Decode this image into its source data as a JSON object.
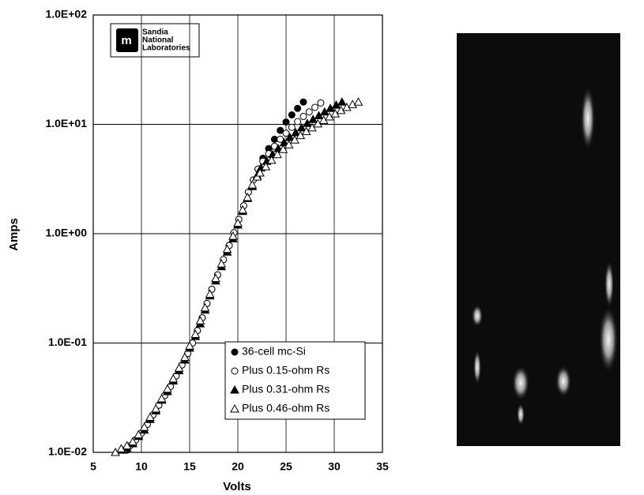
{
  "chart_data": {
    "type": "scatter",
    "x_label": "Volts",
    "y_label": "Amps",
    "logo_lines": [
      "Sandia",
      "National",
      "Laboratories"
    ],
    "xlim": [
      5,
      35
    ],
    "xticks": [
      5,
      10,
      15,
      20,
      25,
      30,
      35
    ],
    "ylim": [
      0.01,
      100
    ],
    "log_y": true,
    "grid": true,
    "legend": "lower right",
    "yticks": [
      {
        "value": 0.01,
        "label": "1.0E-02"
      },
      {
        "value": 0.1,
        "label": "1.0E-01"
      },
      {
        "value": 1,
        "label": "1.0E+00"
      },
      {
        "value": 10,
        "label": "1.0E+01"
      },
      {
        "value": 100,
        "label": "1.0E+02"
      }
    ],
    "series": [
      {
        "name": "36-cell mc-Si",
        "color": "#000000",
        "marker": "circle",
        "filled": true,
        "x": [
          8.5,
          9.4,
          10.0,
          10.6,
          11.2,
          11.8,
          12.4,
          13.0,
          13.6,
          14.2,
          14.8,
          15.3,
          15.8,
          16.3,
          16.8,
          17.3,
          17.9,
          18.5,
          19.1,
          19.6,
          20.1,
          20.6,
          21.1,
          21.6,
          22.1,
          22.6,
          23.2,
          23.8,
          24.4,
          25.0,
          25.6,
          26.2,
          26.8
        ],
        "values": [
          0.0105,
          0.013,
          0.015,
          0.018,
          0.022,
          0.027,
          0.033,
          0.04,
          0.05,
          0.063,
          0.08,
          0.1,
          0.13,
          0.17,
          0.23,
          0.31,
          0.42,
          0.58,
          0.78,
          1.02,
          1.35,
          1.8,
          2.4,
          3.1,
          3.9,
          4.9,
          6.0,
          7.3,
          8.8,
          10.5,
          12.2,
          14.0,
          16.0
        ]
      },
      {
        "name": "Plus 0.15-ohm Rs",
        "color": "#000000",
        "marker": "circle",
        "filled": false,
        "x": [
          8.2,
          8.8,
          9.4,
          10.0,
          10.6,
          11.2,
          11.8,
          12.4,
          13.0,
          13.6,
          14.2,
          14.8,
          15.3,
          15.8,
          16.3,
          16.8,
          17.3,
          17.9,
          18.5,
          19.1,
          19.6,
          20.1,
          20.6,
          21.1,
          21.6,
          22.1,
          22.6,
          23.2,
          23.8,
          24.4,
          25.0,
          25.6,
          26.2,
          26.8,
          27.4,
          28.0,
          28.6
        ],
        "values": [
          0.0105,
          0.0115,
          0.013,
          0.015,
          0.018,
          0.022,
          0.027,
          0.033,
          0.04,
          0.05,
          0.063,
          0.08,
          0.1,
          0.13,
          0.17,
          0.23,
          0.31,
          0.42,
          0.58,
          0.78,
          1.02,
          1.35,
          1.8,
          2.4,
          3.1,
          3.9,
          4.6,
          5.4,
          6.3,
          7.3,
          8.3,
          9.4,
          10.6,
          11.8,
          13.0,
          14.3,
          15.7
        ]
      },
      {
        "name": "Plus 0.31-ohm Rs",
        "color": "#000000",
        "marker": "triangle",
        "filled": true,
        "x": [
          7.9,
          8.5,
          9.1,
          9.7,
          10.3,
          10.9,
          11.5,
          12.1,
          12.7,
          13.3,
          13.9,
          14.5,
          15.0,
          15.6,
          16.1,
          16.6,
          17.1,
          17.7,
          18.3,
          18.9,
          19.5,
          20.0,
          20.5,
          21.0,
          21.5,
          22.0,
          22.4,
          23.0,
          23.6,
          24.2,
          24.8,
          25.4,
          26.0,
          26.6,
          27.2,
          27.8,
          28.4,
          29.0,
          29.6,
          30.2,
          30.8
        ],
        "values": [
          0.0105,
          0.011,
          0.012,
          0.014,
          0.016,
          0.02,
          0.024,
          0.03,
          0.036,
          0.045,
          0.056,
          0.07,
          0.09,
          0.115,
          0.15,
          0.2,
          0.27,
          0.37,
          0.5,
          0.68,
          0.9,
          1.2,
          1.6,
          2.1,
          2.7,
          3.4,
          4.0,
          4.6,
          5.3,
          6.0,
          6.8,
          7.6,
          8.4,
          9.3,
          10.2,
          11.1,
          12.0,
          13.0,
          14.0,
          15.0,
          16.0
        ]
      },
      {
        "name": "Plus 0.46-ohm Rs",
        "color": "#000000",
        "marker": "triangle",
        "filled": false,
        "x": [
          7.3,
          7.9,
          8.5,
          9.1,
          9.7,
          10.3,
          10.9,
          11.5,
          12.1,
          12.7,
          13.3,
          13.9,
          14.5,
          15.0,
          15.6,
          16.1,
          16.6,
          17.1,
          17.7,
          18.3,
          18.9,
          19.5,
          20.0,
          20.5,
          21.0,
          21.5,
          22.0,
          22.3,
          22.9,
          23.5,
          24.1,
          24.7,
          25.3,
          25.9,
          26.5,
          27.1,
          27.7,
          28.3,
          28.9,
          29.5,
          30.1,
          30.7,
          31.3,
          31.9,
          32.5
        ],
        "values": [
          0.01,
          0.0108,
          0.0115,
          0.0125,
          0.0145,
          0.017,
          0.021,
          0.025,
          0.031,
          0.038,
          0.047,
          0.059,
          0.074,
          0.094,
          0.12,
          0.16,
          0.21,
          0.28,
          0.39,
          0.53,
          0.72,
          0.95,
          1.25,
          1.65,
          2.15,
          2.8,
          3.3,
          3.6,
          4.1,
          4.7,
          5.3,
          5.9,
          6.5,
          7.2,
          7.9,
          8.6,
          9.3,
          10.1,
          10.9,
          11.7,
          12.5,
          13.4,
          14.3,
          15.2,
          16.0
        ]
      }
    ]
  }
}
